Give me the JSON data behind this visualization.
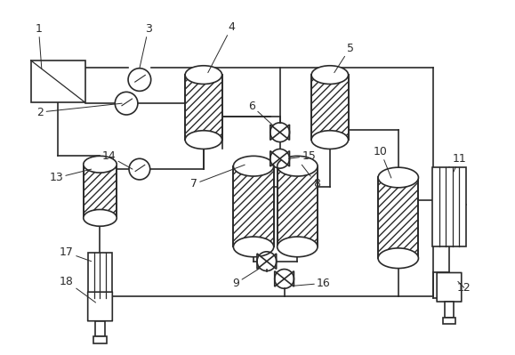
{
  "bg_color": "#ffffff",
  "line_color": "#2a2a2a",
  "fig_width": 5.79,
  "fig_height": 3.99,
  "dpi": 100
}
